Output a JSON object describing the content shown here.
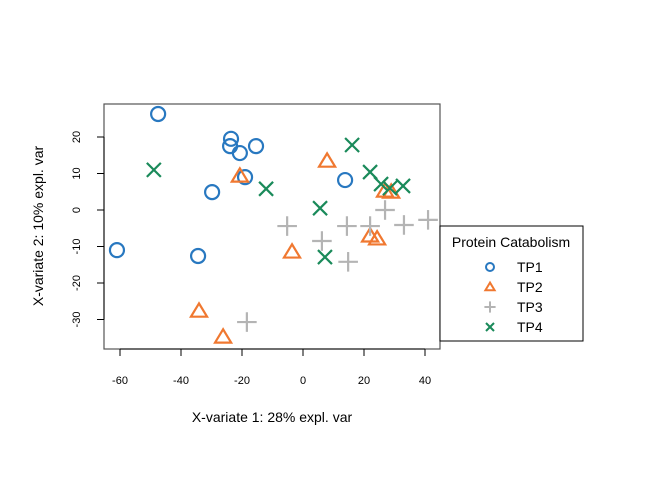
{
  "chart_data": {
    "type": "scatter",
    "title": "",
    "xlabel": "X-variate 1: 28% expl. var",
    "ylabel": "X-variate 2: 10% expl. var",
    "xlim": [
      -65,
      45
    ],
    "ylim": [
      -38,
      29
    ],
    "xticks": [
      -60,
      -40,
      -20,
      0,
      20,
      40
    ],
    "yticks": [
      -30,
      -20,
      -10,
      0,
      10,
      20
    ],
    "grid": false,
    "legend": {
      "title": "Protein Catabolism",
      "placement": "right"
    },
    "series": [
      {
        "name": "TP1",
        "marker": "circle",
        "color": "#2878c0",
        "points": [
          [
            -47.5,
            26.3
          ],
          [
            -23.6,
            19.5
          ],
          [
            -23.9,
            17.5
          ],
          [
            -20.7,
            15.6
          ],
          [
            -15.4,
            17.5
          ],
          [
            -19.0,
            9.0
          ],
          [
            -29.8,
            4.9
          ],
          [
            13.8,
            8.2
          ],
          [
            -61.0,
            -11.0
          ],
          [
            -34.4,
            -12.6
          ]
        ]
      },
      {
        "name": "TP2",
        "marker": "triangle",
        "color": "#f07830",
        "points": [
          [
            7.9,
            13.4
          ],
          [
            -20.7,
            9.3
          ],
          [
            26.9,
            5.2
          ],
          [
            28.9,
            4.9
          ],
          [
            -3.6,
            -11.5
          ],
          [
            22.0,
            -7.1
          ],
          [
            24.3,
            -7.9
          ],
          [
            -34.1,
            -27.7
          ],
          [
            -26.2,
            -34.8
          ]
        ]
      },
      {
        "name": "TP3",
        "marker": "plus",
        "color": "#b4b4b4",
        "points": [
          [
            -5.2,
            -4.4
          ],
          [
            6.2,
            -8.5
          ],
          [
            14.4,
            -4.4
          ],
          [
            22.0,
            -4.4
          ],
          [
            14.8,
            -14.2
          ],
          [
            26.9,
            0.0
          ],
          [
            33.1,
            -4.1
          ],
          [
            41.0,
            -2.7
          ],
          [
            -18.4,
            -30.7
          ]
        ]
      },
      {
        "name": "TP4",
        "marker": "x",
        "color": "#1a8a5a",
        "points": [
          [
            -48.9,
            11.0
          ],
          [
            -12.1,
            5.8
          ],
          [
            16.1,
            17.8
          ],
          [
            22.0,
            10.4
          ],
          [
            25.6,
            7.1
          ],
          [
            28.5,
            6.0
          ],
          [
            32.8,
            6.6
          ],
          [
            5.6,
            0.5
          ],
          [
            7.2,
            -12.9
          ]
        ]
      }
    ]
  }
}
